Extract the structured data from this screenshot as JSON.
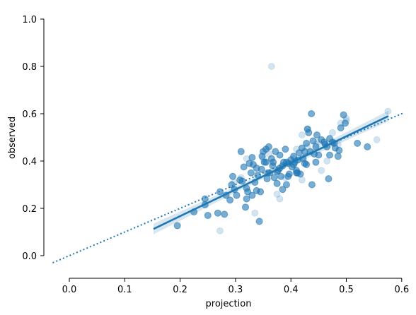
{
  "chart_data": {
    "type": "scatter",
    "xlabel": "projection",
    "ylabel": "observed",
    "xlim": [
      -0.035,
      0.6
    ],
    "ylim": [
      -0.03,
      1.0
    ],
    "xticks": [
      "0.0",
      "0.1",
      "0.2",
      "0.3",
      "0.4",
      "0.5",
      "0.6"
    ],
    "yticks": [
      "0.0",
      "0.2",
      "0.4",
      "0.6",
      "0.8",
      "1.0"
    ],
    "grid": false,
    "point_color": "#1f77b4",
    "points": [
      [
        0.195,
        0.127
      ],
      [
        0.225,
        0.185
      ],
      [
        0.245,
        0.215
      ],
      [
        0.245,
        0.24
      ],
      [
        0.25,
        0.17
      ],
      [
        0.268,
        0.18
      ],
      [
        0.272,
        0.27
      ],
      [
        0.28,
        0.175
      ],
      [
        0.283,
        0.255
      ],
      [
        0.29,
        0.235
      ],
      [
        0.293,
        0.3
      ],
      [
        0.295,
        0.335
      ],
      [
        0.298,
        0.28
      ],
      [
        0.31,
        0.44
      ],
      [
        0.312,
        0.315
      ],
      [
        0.315,
        0.375
      ],
      [
        0.318,
        0.205
      ],
      [
        0.32,
        0.24
      ],
      [
        0.322,
        0.27
      ],
      [
        0.325,
        0.39
      ],
      [
        0.328,
        0.35
      ],
      [
        0.33,
        0.415
      ],
      [
        0.332,
        0.385
      ],
      [
        0.335,
        0.31
      ],
      [
        0.338,
        0.275
      ],
      [
        0.34,
        0.34
      ],
      [
        0.343,
        0.145
      ],
      [
        0.345,
        0.27
      ],
      [
        0.347,
        0.365
      ],
      [
        0.35,
        0.44
      ],
      [
        0.352,
        0.395
      ],
      [
        0.355,
        0.45
      ],
      [
        0.357,
        0.325
      ],
      [
        0.36,
        0.46
      ],
      [
        0.362,
        0.35
      ],
      [
        0.365,
        0.41
      ],
      [
        0.367,
        0.38
      ],
      [
        0.37,
        0.33
      ],
      [
        0.372,
        0.44
      ],
      [
        0.375,
        0.305
      ],
      [
        0.377,
        0.36
      ],
      [
        0.38,
        0.425
      ],
      [
        0.382,
        0.335
      ],
      [
        0.385,
        0.38
      ],
      [
        0.387,
        0.395
      ],
      [
        0.39,
        0.45
      ],
      [
        0.392,
        0.3
      ],
      [
        0.395,
        0.39
      ],
      [
        0.397,
        0.345
      ],
      [
        0.4,
        0.405
      ],
      [
        0.402,
        0.375
      ],
      [
        0.405,
        0.42
      ],
      [
        0.407,
        0.395
      ],
      [
        0.41,
        0.36
      ],
      [
        0.412,
        0.35
      ],
      [
        0.415,
        0.435
      ],
      [
        0.417,
        0.345
      ],
      [
        0.42,
        0.455
      ],
      [
        0.422,
        0.41
      ],
      [
        0.425,
        0.39
      ],
      [
        0.428,
        0.475
      ],
      [
        0.43,
        0.535
      ],
      [
        0.432,
        0.52
      ],
      [
        0.435,
        0.44
      ],
      [
        0.437,
        0.6
      ],
      [
        0.44,
        0.485
      ],
      [
        0.442,
        0.43
      ],
      [
        0.445,
        0.395
      ],
      [
        0.447,
        0.51
      ],
      [
        0.45,
        0.425
      ],
      [
        0.455,
        0.49
      ],
      [
        0.46,
        0.48
      ],
      [
        0.465,
        0.46
      ],
      [
        0.468,
        0.325
      ],
      [
        0.47,
        0.495
      ],
      [
        0.475,
        0.48
      ],
      [
        0.48,
        0.455
      ],
      [
        0.485,
        0.42
      ],
      [
        0.487,
        0.445
      ],
      [
        0.49,
        0.54
      ],
      [
        0.495,
        0.595
      ],
      [
        0.498,
        0.56
      ],
      [
        0.52,
        0.475
      ],
      [
        0.538,
        0.46
      ],
      [
        0.438,
        0.3
      ],
      [
        0.428,
        0.385
      ],
      [
        0.413,
        0.405
      ],
      [
        0.395,
        0.335
      ],
      [
        0.38,
        0.37
      ],
      [
        0.368,
        0.395
      ],
      [
        0.358,
        0.35
      ],
      [
        0.348,
        0.42
      ],
      [
        0.338,
        0.37
      ],
      [
        0.33,
        0.255
      ],
      [
        0.32,
        0.285
      ],
      [
        0.302,
        0.255
      ],
      [
        0.308,
        0.32
      ],
      [
        0.385,
        0.28
      ],
      [
        0.41,
        0.35
      ],
      [
        0.425,
        0.44
      ],
      [
        0.445,
        0.46
      ],
      [
        0.462,
        0.47
      ],
      [
        0.478,
        0.475
      ],
      [
        0.405,
        0.385
      ],
      [
        0.392,
        0.395
      ],
      [
        0.375,
        0.355
      ],
      [
        0.355,
        0.395
      ],
      [
        0.47,
        0.425
      ]
    ],
    "faded_points": [
      [
        0.365,
        0.8
      ],
      [
        0.272,
        0.105
      ],
      [
        0.335,
        0.18
      ],
      [
        0.575,
        0.61
      ],
      [
        0.555,
        0.49
      ],
      [
        0.42,
        0.51
      ],
      [
        0.43,
        0.535
      ],
      [
        0.445,
        0.47
      ],
      [
        0.455,
        0.36
      ],
      [
        0.465,
        0.4
      ],
      [
        0.475,
        0.52
      ],
      [
        0.485,
        0.47
      ],
      [
        0.5,
        0.57
      ],
      [
        0.405,
        0.41
      ],
      [
        0.39,
        0.33
      ],
      [
        0.38,
        0.24
      ],
      [
        0.375,
        0.26
      ],
      [
        0.36,
        0.43
      ],
      [
        0.35,
        0.41
      ],
      [
        0.32,
        0.41
      ],
      [
        0.31,
        0.33
      ],
      [
        0.298,
        0.31
      ],
      [
        0.42,
        0.32
      ],
      [
        0.41,
        0.45
      ],
      [
        0.43,
        0.46
      ],
      [
        0.45,
        0.48
      ],
      [
        0.49,
        0.56
      ],
      [
        0.5,
        0.58
      ]
    ],
    "regression": {
      "x_start": 0.152,
      "y_start": 0.113,
      "x_end": 0.576,
      "y_end": 0.59,
      "band": 0.025
    },
    "identity_line": {
      "x_start": -0.03,
      "y_start": -0.03,
      "x_end": 0.605,
      "y_end": 0.605
    }
  }
}
